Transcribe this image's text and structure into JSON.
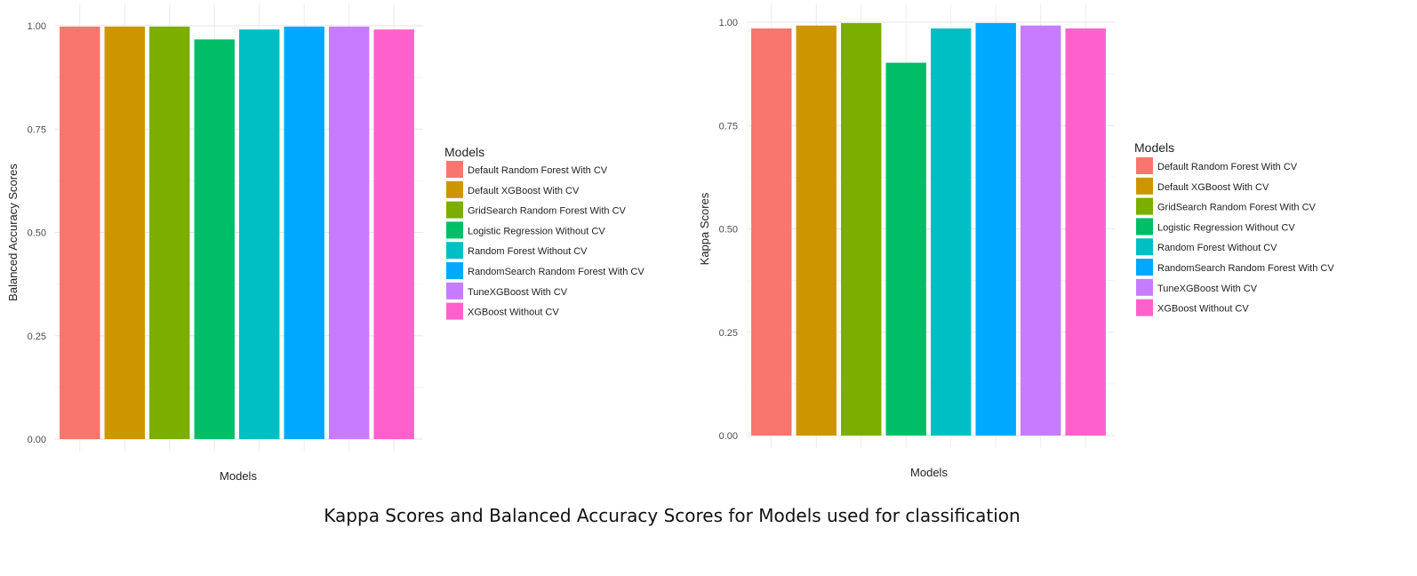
{
  "caption": "Kappa Scores and Balanced Accuracy Scores for Models used for classification",
  "chart_data": [
    {
      "type": "bar",
      "title": "",
      "xlabel": "Models",
      "ylabel": "Balanced Accuracy Scores",
      "ylim": [
        0,
        1
      ],
      "yticks": [
        "0.00",
        "0.25",
        "0.50",
        "0.75",
        "1.00"
      ],
      "ytick_values": [
        0,
        0.25,
        0.5,
        0.75,
        1.0
      ],
      "grid": true,
      "legend_title": "Models",
      "legend_position": "right",
      "categories": [
        "Default Random Forest With CV",
        "Default XGBoost With CV",
        "GridSearch Random Forest With CV",
        "Logistic Regression Without CV",
        "Random Forest Without CV",
        "RandomSearch Random Forest With CV",
        "TuneXGBoost With CV",
        "XGBoost Without CV"
      ],
      "values": [
        0.998,
        0.998,
        0.998,
        0.967,
        0.991,
        0.998,
        0.998,
        0.991
      ],
      "colors": [
        "#F8766D",
        "#CD9600",
        "#7CAE00",
        "#00BE67",
        "#00BFC4",
        "#00A9FF",
        "#C77CFF",
        "#FF61CC"
      ]
    },
    {
      "type": "bar",
      "title": "",
      "xlabel": "Models",
      "ylabel": "Kappa Scores",
      "ylim": [
        0,
        1
      ],
      "yticks": [
        "0.00",
        "0.25",
        "0.50",
        "0.75",
        "1.00"
      ],
      "ytick_values": [
        0,
        0.25,
        0.5,
        0.75,
        1.0
      ],
      "grid": true,
      "legend_title": "Models",
      "legend_position": "right",
      "categories": [
        "Default Random Forest With CV",
        "Default XGBoost With CV",
        "GridSearch Random Forest With CV",
        "Logistic Regression Without CV",
        "Random Forest Without CV",
        "RandomSearch Random Forest With CV",
        "TuneXGBoost With CV",
        "XGBoost Without CV"
      ],
      "values": [
        0.985,
        0.992,
        0.998,
        0.902,
        0.985,
        0.998,
        0.992,
        0.985
      ],
      "colors": [
        "#F8766D",
        "#CD9600",
        "#7CAE00",
        "#00BE67",
        "#00BFC4",
        "#00A9FF",
        "#C77CFF",
        "#FF61CC"
      ]
    }
  ]
}
